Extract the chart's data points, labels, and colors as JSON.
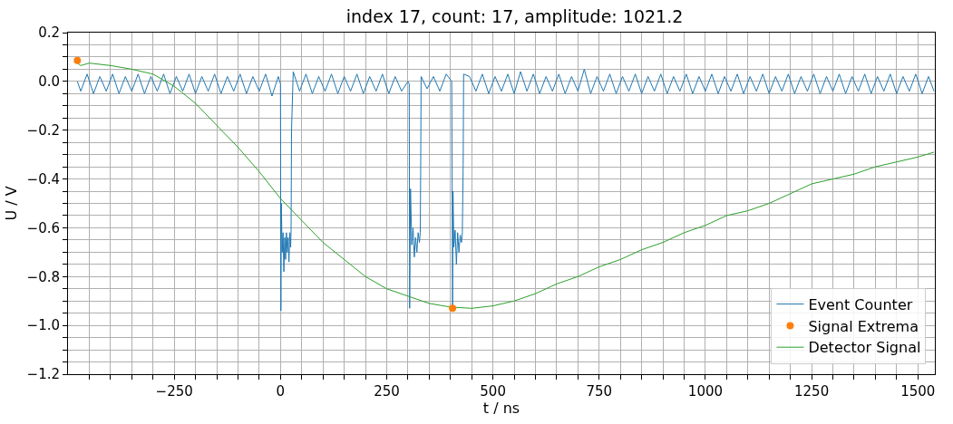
{
  "chart_data": {
    "type": "line",
    "title": "index 17, count: 17, amplitude: 1021.2",
    "xlabel": "t / ns",
    "ylabel": "U / V",
    "xlim": [
      -500,
      1540
    ],
    "ylim": [
      -1.2,
      0.2
    ],
    "xticks": [
      {
        "value": -450,
        "label": null
      },
      {
        "value": -400,
        "label": null
      },
      {
        "value": -350,
        "label": null
      },
      {
        "value": -300,
        "label": null
      },
      -250,
      {
        "value": -200,
        "label": null
      },
      {
        "value": -150,
        "label": null
      },
      {
        "value": -100,
        "label": null
      },
      {
        "value": -50,
        "label": null
      },
      0,
      {
        "value": 50,
        "label": null
      },
      {
        "value": 100,
        "label": null
      },
      {
        "value": 150,
        "label": null
      },
      {
        "value": 200,
        "label": null
      },
      250,
      {
        "value": 300,
        "label": null
      },
      {
        "value": 350,
        "label": null
      },
      {
        "value": 400,
        "label": null
      },
      {
        "value": 450,
        "label": null
      },
      500,
      {
        "value": 550,
        "label": null
      },
      {
        "value": 600,
        "label": null
      },
      {
        "value": 650,
        "label": null
      },
      {
        "value": 700,
        "label": null
      },
      750,
      {
        "value": 800,
        "label": null
      },
      {
        "value": 850,
        "label": null
      },
      {
        "value": 900,
        "label": null
      },
      {
        "value": 950,
        "label": null
      },
      1000,
      {
        "value": 1050,
        "label": null
      },
      {
        "value": 1100,
        "label": null
      },
      {
        "value": 1150,
        "label": null
      },
      {
        "value": 1200,
        "label": null
      },
      1250,
      {
        "value": 1300,
        "label": null
      },
      {
        "value": 1350,
        "label": null
      },
      {
        "value": 1400,
        "label": null
      },
      {
        "value": 1450,
        "label": null
      },
      1500
    ],
    "yticks": [
      {
        "value": -1.2,
        "label": "−1.2"
      },
      {
        "value": -1.15,
        "label": null
      },
      {
        "value": -1.1,
        "label": null
      },
      {
        "value": -1.05,
        "label": null
      },
      {
        "value": -1.0,
        "label": "−1.0"
      },
      {
        "value": -0.95,
        "label": null
      },
      {
        "value": -0.9,
        "label": null
      },
      {
        "value": -0.85,
        "label": null
      },
      {
        "value": -0.8,
        "label": "−0.8"
      },
      {
        "value": -0.75,
        "label": null
      },
      {
        "value": -0.7,
        "label": null
      },
      {
        "value": -0.65,
        "label": null
      },
      {
        "value": -0.6,
        "label": "−0.6"
      },
      {
        "value": -0.55,
        "label": null
      },
      {
        "value": -0.5,
        "label": null
      },
      {
        "value": -0.45,
        "label": null
      },
      {
        "value": -0.4,
        "label": "−0.4"
      },
      {
        "value": -0.35,
        "label": null
      },
      {
        "value": -0.3,
        "label": null
      },
      {
        "value": -0.25,
        "label": null
      },
      {
        "value": -0.2,
        "label": "−0.2"
      },
      {
        "value": -0.15,
        "label": null
      },
      {
        "value": -0.1,
        "label": null
      },
      {
        "value": -0.05,
        "label": null
      },
      {
        "value": 0.0,
        "label": "0.0"
      },
      {
        "value": 0.05,
        "label": null
      },
      {
        "value": 0.1,
        "label": null
      },
      {
        "value": 0.15,
        "label": null
      },
      {
        "value": 0.2,
        "label": "0.2"
      }
    ],
    "grid": true,
    "legend": "bottom right",
    "series": [
      {
        "name": "Event Counter",
        "color": "#1f77b4",
        "line_style": "solid",
        "marker": "none",
        "x": [
          -478,
          -470,
          -455,
          -440,
          -425,
          -410,
          -395,
          -380,
          -365,
          -350,
          -335,
          -320,
          -305,
          -290,
          -275,
          -260,
          -245,
          -230,
          -215,
          -200,
          -185,
          -170,
          -155,
          -140,
          -125,
          -110,
          -95,
          -80,
          -65,
          -50,
          -35,
          -20,
          -5,
          0,
          1,
          2,
          4,
          6,
          8,
          10,
          12,
          14,
          16,
          18,
          20,
          22,
          24,
          25,
          26,
          30,
          45,
          60,
          75,
          90,
          105,
          120,
          135,
          150,
          165,
          180,
          195,
          210,
          225,
          240,
          255,
          270,
          285,
          300,
          303,
          304,
          306,
          309,
          312,
          315,
          318,
          321,
          324,
          327,
          329,
          330,
          331,
          345,
          360,
          375,
          390,
          403,
          405,
          406,
          408,
          411,
          414,
          417,
          420,
          423,
          426,
          428,
          430,
          431,
          445,
          460,
          475,
          490,
          505,
          520,
          535,
          550,
          565,
          580,
          595,
          610,
          625,
          640,
          655,
          670,
          685,
          700,
          715,
          730,
          745,
          760,
          775,
          790,
          805,
          820,
          835,
          850,
          865,
          880,
          895,
          910,
          925,
          940,
          955,
          970,
          985,
          1000,
          1015,
          1030,
          1045,
          1060,
          1075,
          1090,
          1105,
          1120,
          1135,
          1150,
          1165,
          1180,
          1195,
          1210,
          1225,
          1240,
          1255,
          1270,
          1285,
          1300,
          1315,
          1330,
          1345,
          1360,
          1375,
          1390,
          1405,
          1420,
          1435,
          1450,
          1465,
          1480,
          1495,
          1510,
          1525,
          1538
        ],
        "values": [
          0.0,
          -0.04,
          0.03,
          -0.05,
          0.02,
          -0.04,
          0.03,
          -0.05,
          0.02,
          -0.04,
          0.03,
          -0.05,
          0.02,
          -0.04,
          0.03,
          -0.05,
          0.02,
          -0.04,
          0.03,
          -0.05,
          0.02,
          -0.04,
          0.03,
          -0.05,
          0.02,
          -0.04,
          0.03,
          -0.05,
          0.02,
          -0.04,
          0.03,
          -0.06,
          0.02,
          -0.01,
          -0.94,
          -0.5,
          -0.7,
          -0.62,
          -0.78,
          -0.64,
          -0.73,
          -0.62,
          -0.7,
          -0.64,
          -0.74,
          -0.62,
          -0.68,
          -0.61,
          -0.2,
          0.04,
          -0.04,
          0.03,
          -0.05,
          0.02,
          -0.04,
          0.03,
          -0.05,
          0.02,
          -0.04,
          0.03,
          -0.05,
          0.02,
          -0.04,
          0.03,
          -0.05,
          0.02,
          -0.04,
          0.0,
          -0.01,
          -0.93,
          -0.44,
          -0.67,
          -0.6,
          -0.72,
          -0.64,
          -0.7,
          -0.62,
          -0.66,
          -0.62,
          -0.35,
          0.02,
          -0.03,
          0.02,
          -0.04,
          0.03,
          0.0,
          -0.93,
          -0.45,
          -0.68,
          -0.61,
          -0.75,
          -0.62,
          -0.7,
          -0.63,
          -0.66,
          -0.62,
          -0.34,
          0.03,
          0.02,
          -0.04,
          0.03,
          -0.05,
          0.02,
          -0.04,
          0.03,
          -0.05,
          0.04,
          -0.04,
          0.03,
          -0.05,
          0.02,
          -0.04,
          0.03,
          -0.05,
          0.02,
          -0.04,
          0.05,
          -0.05,
          0.02,
          -0.04,
          0.03,
          -0.05,
          0.02,
          -0.04,
          0.03,
          -0.05,
          0.02,
          -0.04,
          0.03,
          -0.05,
          0.02,
          -0.04,
          0.03,
          -0.05,
          0.02,
          -0.04,
          0.03,
          -0.05,
          0.02,
          -0.04,
          0.03,
          -0.05,
          0.02,
          -0.04,
          0.03,
          -0.05,
          0.02,
          -0.04,
          0.03,
          -0.05,
          0.02,
          -0.04,
          0.03,
          -0.05,
          0.02,
          -0.04,
          0.03,
          -0.05,
          0.02,
          -0.04,
          0.03,
          -0.05,
          0.02,
          -0.04,
          0.03,
          -0.05,
          0.02,
          -0.04,
          0.03,
          -0.05,
          0.02,
          -0.04
        ]
      },
      {
        "name": "Signal Extrema",
        "type": "scatter",
        "color": "#ff7f0e",
        "marker": "circle",
        "x": [
          -478,
          405
        ],
        "values": [
          0.086,
          -0.93
        ]
      },
      {
        "name": "Detector Signal",
        "color": "#2ca02c",
        "line_style": "solid",
        "marker": "none",
        "x": [
          -478,
          -470,
          -450,
          -400,
          -350,
          -300,
          -250,
          -200,
          -150,
          -100,
          -50,
          0,
          50,
          100,
          150,
          200,
          250,
          300,
          350,
          400,
          450,
          500,
          550,
          600,
          650,
          700,
          750,
          800,
          850,
          900,
          950,
          1000,
          1050,
          1100,
          1150,
          1200,
          1250,
          1300,
          1350,
          1400,
          1450,
          1500,
          1538
        ],
        "values": [
          0.075,
          0.065,
          0.075,
          0.065,
          0.05,
          0.03,
          -0.02,
          -0.09,
          -0.18,
          -0.27,
          -0.37,
          -0.48,
          -0.57,
          -0.66,
          -0.73,
          -0.8,
          -0.85,
          -0.88,
          -0.91,
          -0.925,
          -0.93,
          -0.92,
          -0.9,
          -0.87,
          -0.83,
          -0.8,
          -0.76,
          -0.73,
          -0.69,
          -0.66,
          -0.62,
          -0.59,
          -0.55,
          -0.53,
          -0.5,
          -0.46,
          -0.42,
          -0.4,
          -0.38,
          -0.35,
          -0.33,
          -0.31,
          -0.29
        ]
      }
    ]
  }
}
